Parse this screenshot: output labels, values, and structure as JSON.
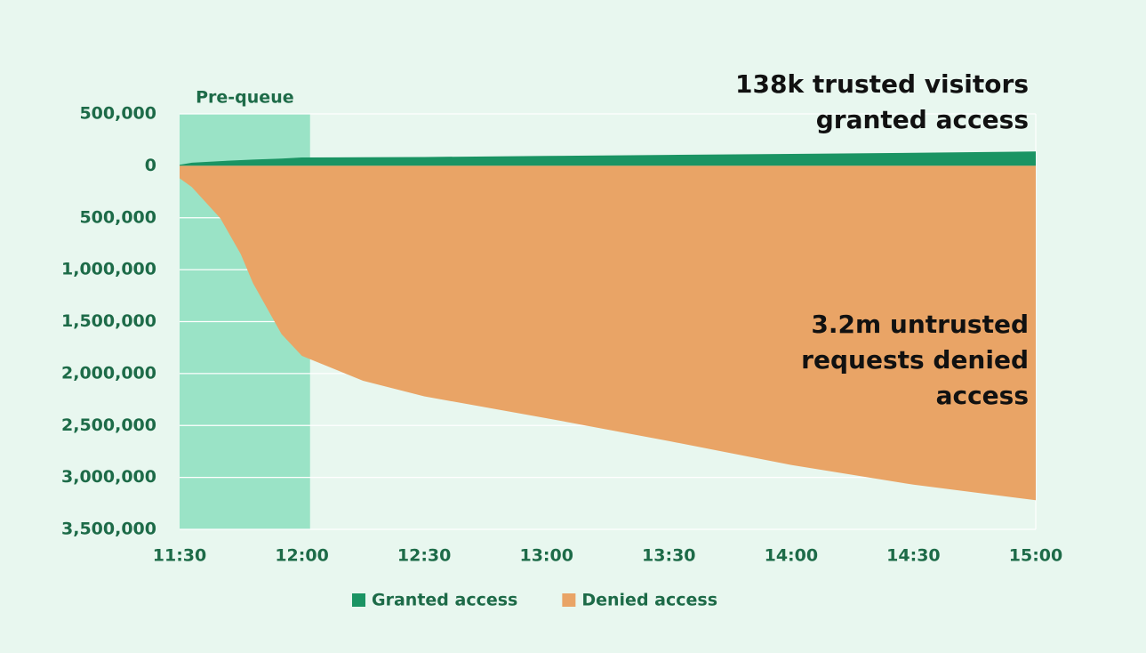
{
  "chart_data": {
    "type": "area",
    "x": [
      "11:30",
      "11:33",
      "11:40",
      "11:45",
      "11:48",
      "11:55",
      "12:00",
      "12:15",
      "12:30",
      "13:00",
      "13:30",
      "14:00",
      "14:30",
      "15:00"
    ],
    "series": [
      {
        "name": "Granted access",
        "color": "#1a9463",
        "values": [
          10000,
          30000,
          45000,
          55000,
          60000,
          70000,
          80000,
          82000,
          85000,
          95000,
          105000,
          115000,
          125000,
          138000
        ]
      },
      {
        "name": "Denied access",
        "color": "#e9a466",
        "values": [
          -120000,
          -205000,
          -505000,
          -850000,
          -1130000,
          -1620000,
          -1830000,
          -2070000,
          -2220000,
          -2430000,
          -2650000,
          -2880000,
          -3070000,
          -3220000
        ]
      }
    ],
    "xlim": [
      "11:30",
      "15:00"
    ],
    "xticks": [
      "11:30",
      "12:00",
      "12:30",
      "13:00",
      "13:30",
      "14:00",
      "14:30",
      "15:00"
    ],
    "ylim": [
      -3500000,
      500000
    ],
    "yticks": [
      {
        "value": 500000,
        "label": "500,000"
      },
      0,
      {
        "value": -500000,
        "label": "500,000"
      },
      {
        "value": -1000000,
        "label": "1,000,000"
      },
      {
        "value": -1500000,
        "label": "1,500,000"
      },
      {
        "value": -2000000,
        "label": "2,000,000"
      },
      {
        "value": -2500000,
        "label": "2,500,000"
      },
      {
        "value": -3000000,
        "label": "3,000,000"
      },
      {
        "value": -3500000,
        "label": "3,500,000"
      }
    ],
    "grid": true,
    "shade": {
      "from": "11:30",
      "to": "12:02",
      "label": "Pre-queue",
      "color": "#9ae3c6"
    },
    "annotations": [
      {
        "series": 0,
        "lines": [
          "138k trusted visitors",
          "granted access"
        ]
      },
      {
        "series": 1,
        "lines": [
          "3.2m untrusted",
          "requests denied",
          "access"
        ]
      }
    ]
  }
}
